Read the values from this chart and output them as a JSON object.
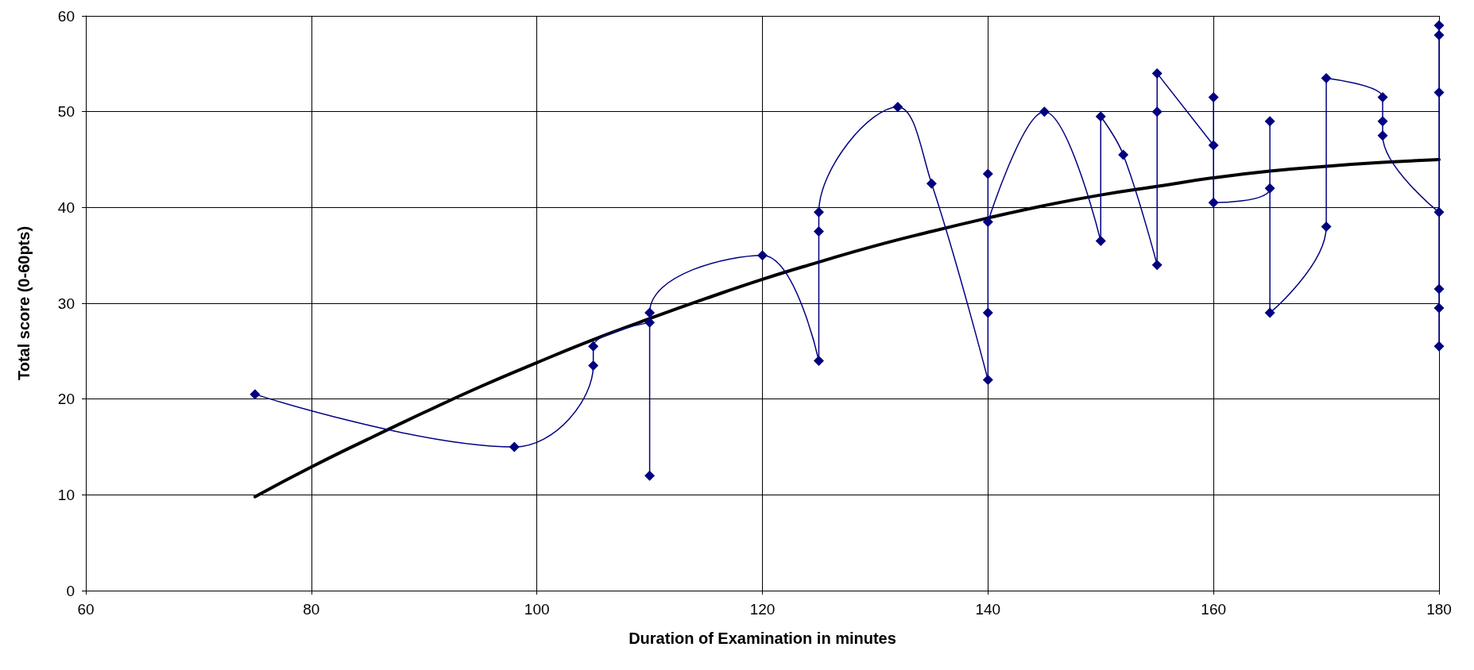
{
  "chart_data": {
    "type": "line",
    "xlabel": "Duration of Examination in minutes",
    "ylabel": "Total score (0-60pts)",
    "xlim": [
      60,
      180
    ],
    "xticks": [
      60,
      80,
      100,
      120,
      140,
      160,
      180
    ],
    "ylim": [
      0,
      60
    ],
    "yticks": [
      0,
      10,
      20,
      30,
      40,
      50,
      60
    ],
    "grid": true,
    "series": [
      {
        "color": "#000080",
        "marker": "diamond",
        "x": [
          75,
          98,
          105,
          105,
          110,
          110,
          110,
          120,
          125,
          125,
          125,
          132,
          135,
          140,
          140,
          140,
          140,
          145,
          150,
          150,
          152,
          155,
          155,
          155,
          160,
          160,
          160,
          165,
          165,
          165,
          170,
          170,
          175,
          175,
          175,
          180,
          180,
          180,
          180,
          180,
          180,
          180
        ],
        "values": [
          20.5,
          15,
          23.5,
          25.5,
          28,
          12,
          29,
          35,
          24,
          37.5,
          39.5,
          50.5,
          42.5,
          22,
          29,
          43.5,
          38.5,
          50,
          36.5,
          49.5,
          45.5,
          34,
          50,
          54,
          46.5,
          51.5,
          40.5,
          42,
          49,
          29,
          38,
          53.5,
          51.5,
          49,
          47.5,
          39.5,
          59,
          58,
          52,
          31.5,
          29.5,
          25.5
        ]
      },
      {
        "color": "#000000",
        "marker": "none",
        "x": [
          75,
          80,
          85,
          90,
          95,
          100,
          105,
          110,
          115,
          120,
          125,
          130,
          135,
          140,
          145,
          150,
          155,
          160,
          165,
          170,
          175,
          180
        ],
        "values": [
          9.8,
          12.9,
          15.8,
          18.6,
          21.3,
          23.8,
          26.2,
          28.4,
          30.5,
          32.5,
          34.3,
          36.0,
          37.5,
          38.9,
          40.2,
          41.3,
          42.2,
          43.1,
          43.8,
          44.3,
          44.7,
          45.0
        ]
      }
    ]
  }
}
